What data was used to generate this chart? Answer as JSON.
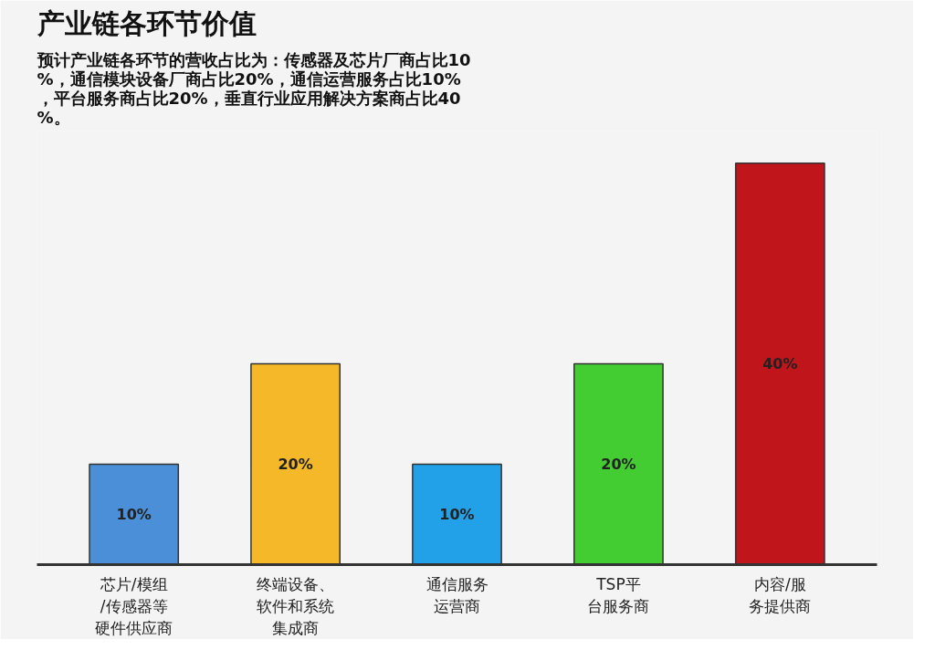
{
  "chart_data": {
    "type": "bar",
    "title": "产业链各环节价值",
    "subtitle": "预计产业链各环节的营收占比为：传感器及芯片厂商占比10%，通信模块设备厂商占比20%，通信运营服务占比10%，平台服务商占比20%，垂直行业应用解决方案商占比40%。",
    "categories": [
      "芯片/模组/传感器等硬件供应商",
      "终端设备、软件和系统集成商",
      "通信服务运营商",
      "TSP平台服务商",
      "内容/服务提供商"
    ],
    "values": [
      10,
      20,
      10,
      20,
      40
    ],
    "colors": [
      "#4a8fd8",
      "#f5b829",
      "#22a0e8",
      "#44cc33",
      "#c0161b"
    ],
    "value_labels": [
      "10%",
      "20%",
      "10%",
      "20%",
      "40%"
    ],
    "grid": false
  }
}
